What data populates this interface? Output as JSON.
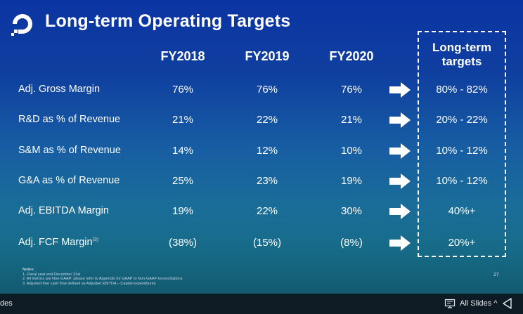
{
  "slide": {
    "title": "Long-term Operating Targets",
    "columns": [
      "FY2018",
      "FY2019",
      "FY2020"
    ],
    "longterm_header": [
      "Long-term",
      "targets"
    ],
    "rows": [
      {
        "label": "Adj. Gross Margin",
        "sup": "",
        "fy2018": "76%",
        "fy2019": "76%",
        "fy2020": "76%",
        "target": "80% - 82%"
      },
      {
        "label": "R&D as % of Revenue",
        "sup": "",
        "fy2018": "21%",
        "fy2019": "22%",
        "fy2020": "21%",
        "target": "20% - 22%"
      },
      {
        "label": "S&M as % of Revenue",
        "sup": "",
        "fy2018": "14%",
        "fy2019": "12%",
        "fy2020": "10%",
        "target": "10% - 12%"
      },
      {
        "label": "G&A as % of Revenue",
        "sup": "",
        "fy2018": "25%",
        "fy2019": "23%",
        "fy2020": "19%",
        "target": "10% - 12%"
      },
      {
        "label": "Adj. EBITDA Margin",
        "sup": "",
        "fy2018": "19%",
        "fy2019": "22%",
        "fy2020": "30%",
        "target": "40%+"
      },
      {
        "label": "Adj. FCF Margin",
        "sup": "(3)",
        "fy2018": "(38%)",
        "fy2019": "(15%)",
        "fy2020": "(8%)",
        "target": "20%+"
      }
    ],
    "notes": {
      "heading": "Notes:",
      "lines": [
        "1.  Fiscal year end December 31st",
        "2.  All metrics are Non-GAAP; please refer to Appendix for GAAP to Non-GAAP reconciliations",
        "3.  Adjusted free cash flow defined as Adjusted EBITDA – Capital expenditures"
      ]
    },
    "page_number": "27"
  },
  "viewer": {
    "left_text": "des",
    "all_slides_label": "All Slides",
    "all_slides_caret": "^",
    "icons": [
      "slides-icon",
      "back-arrow-icon"
    ]
  },
  "colors": {
    "slide_top": "#0b34a3",
    "slide_bottom": "#125a6f",
    "text": "#ffffff",
    "viewer_bar": "#0e1a24"
  }
}
